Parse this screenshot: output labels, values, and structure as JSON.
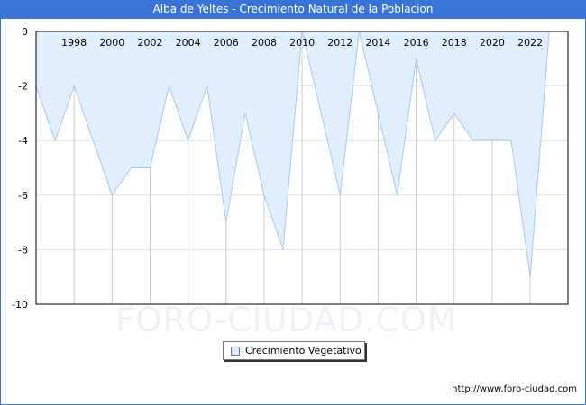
{
  "header": {
    "title": "Alba de Yeltes - Crecimiento Natural de la Poblacion"
  },
  "legend": {
    "label": "Crecimiento Vegetativo",
    "swatch_color": "#e1effc"
  },
  "footer": {
    "url": "http://www.foro-ciudad.com"
  },
  "watermark": {
    "text": "FORO-CIUDAD.COM"
  },
  "colors": {
    "title_bar": "#3a73d6",
    "fill": "#e1effc",
    "line": "#a8c8ee",
    "grid": "#dcdcdc"
  },
  "chart_data": {
    "type": "area",
    "title": "Alba de Yeltes - Crecimiento Natural de la Poblacion",
    "xlabel": "",
    "ylabel": "",
    "ylim": [
      -10,
      0
    ],
    "y_ticks": [
      0,
      -2,
      -4,
      -6,
      -8,
      -10
    ],
    "x_tick_labels": [
      "1998",
      "2000",
      "2002",
      "2004",
      "2006",
      "2008",
      "2010",
      "2012",
      "2014",
      "2016",
      "2018",
      "2020",
      "2022"
    ],
    "x_tick_position": "top",
    "grid": true,
    "legend_position": "bottom",
    "series": [
      {
        "name": "Crecimiento Vegetativo",
        "x": [
          1996,
          1997,
          1998,
          1999,
          2000,
          2001,
          2002,
          2003,
          2004,
          2005,
          2006,
          2007,
          2008,
          2009,
          2010,
          2011,
          2012,
          2013,
          2014,
          2015,
          2016,
          2017,
          2018,
          2019,
          2020,
          2021,
          2022,
          2023
        ],
        "values": [
          -2,
          -4,
          -2,
          -4,
          -6,
          -5,
          -5,
          -2,
          -4,
          -2,
          -7,
          -3,
          -6,
          -8,
          0,
          -3,
          -6,
          0,
          -3,
          -6,
          -1,
          -4,
          -3,
          -4,
          -4,
          -4,
          -9,
          0
        ]
      }
    ]
  }
}
